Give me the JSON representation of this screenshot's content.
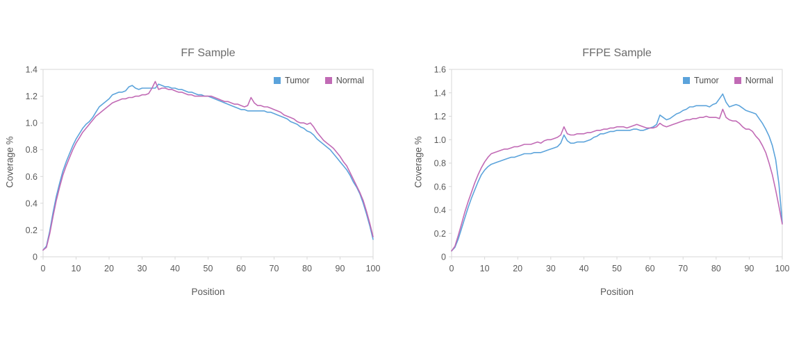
{
  "figure": {
    "background": "#ffffff",
    "text_color": "#595959",
    "axis_line_color": "#d7d7d7"
  },
  "chart_data": [
    {
      "type": "line",
      "title": "FF Sample",
      "xlabel": "Position",
      "ylabel": "Coverage %",
      "xlim": [
        0,
        100
      ],
      "ylim": [
        0,
        1.4
      ],
      "xticks": [
        0,
        10,
        20,
        30,
        40,
        50,
        60,
        70,
        80,
        90,
        100
      ],
      "yticks": [
        0,
        0.2,
        0.4,
        0.6,
        0.8,
        1.0,
        1.2,
        1.4
      ],
      "grid": false,
      "legend_position": "top-right-inside",
      "x": [
        0,
        1,
        2,
        3,
        4,
        5,
        6,
        7,
        8,
        9,
        10,
        11,
        12,
        13,
        14,
        15,
        16,
        17,
        18,
        19,
        20,
        21,
        22,
        23,
        24,
        25,
        26,
        27,
        28,
        29,
        30,
        31,
        32,
        33,
        34,
        35,
        36,
        37,
        38,
        39,
        40,
        41,
        42,
        43,
        44,
        45,
        46,
        47,
        48,
        49,
        50,
        51,
        52,
        53,
        54,
        55,
        56,
        57,
        58,
        59,
        60,
        61,
        62,
        63,
        64,
        65,
        66,
        67,
        68,
        69,
        70,
        71,
        72,
        73,
        74,
        75,
        76,
        77,
        78,
        79,
        80,
        81,
        82,
        83,
        84,
        85,
        86,
        87,
        88,
        89,
        90,
        91,
        92,
        93,
        94,
        95,
        96,
        97,
        98,
        99,
        100
      ],
      "series": [
        {
          "name": "Tumor",
          "color": "#5ba3db",
          "values": [
            0.05,
            0.08,
            0.19,
            0.33,
            0.45,
            0.55,
            0.64,
            0.71,
            0.77,
            0.83,
            0.88,
            0.92,
            0.96,
            0.99,
            1.01,
            1.04,
            1.08,
            1.12,
            1.14,
            1.16,
            1.18,
            1.21,
            1.22,
            1.23,
            1.23,
            1.24,
            1.27,
            1.28,
            1.26,
            1.25,
            1.26,
            1.26,
            1.26,
            1.26,
            1.26,
            1.29,
            1.28,
            1.27,
            1.27,
            1.26,
            1.26,
            1.25,
            1.25,
            1.24,
            1.23,
            1.23,
            1.22,
            1.21,
            1.21,
            1.2,
            1.2,
            1.19,
            1.18,
            1.17,
            1.16,
            1.15,
            1.14,
            1.13,
            1.12,
            1.11,
            1.1,
            1.1,
            1.09,
            1.09,
            1.09,
            1.09,
            1.09,
            1.09,
            1.08,
            1.08,
            1.07,
            1.06,
            1.05,
            1.04,
            1.03,
            1.01,
            1.0,
            0.99,
            0.97,
            0.96,
            0.94,
            0.93,
            0.91,
            0.88,
            0.86,
            0.84,
            0.82,
            0.8,
            0.77,
            0.74,
            0.71,
            0.68,
            0.65,
            0.61,
            0.56,
            0.52,
            0.47,
            0.4,
            0.32,
            0.23,
            0.13
          ]
        },
        {
          "name": "Normal",
          "color": "#c16ab5",
          "values": [
            0.05,
            0.07,
            0.17,
            0.3,
            0.42,
            0.52,
            0.61,
            0.68,
            0.74,
            0.8,
            0.85,
            0.89,
            0.93,
            0.96,
            0.99,
            1.02,
            1.05,
            1.07,
            1.09,
            1.11,
            1.13,
            1.15,
            1.16,
            1.17,
            1.18,
            1.18,
            1.19,
            1.19,
            1.2,
            1.2,
            1.21,
            1.21,
            1.22,
            1.26,
            1.31,
            1.25,
            1.26,
            1.26,
            1.25,
            1.25,
            1.24,
            1.23,
            1.23,
            1.22,
            1.21,
            1.21,
            1.2,
            1.2,
            1.2,
            1.2,
            1.2,
            1.2,
            1.19,
            1.18,
            1.17,
            1.16,
            1.16,
            1.15,
            1.14,
            1.14,
            1.13,
            1.12,
            1.13,
            1.19,
            1.15,
            1.13,
            1.13,
            1.12,
            1.12,
            1.11,
            1.1,
            1.09,
            1.08,
            1.06,
            1.05,
            1.04,
            1.03,
            1.01,
            1.0,
            1.0,
            0.99,
            1.0,
            0.97,
            0.93,
            0.9,
            0.87,
            0.85,
            0.83,
            0.81,
            0.78,
            0.75,
            0.71,
            0.68,
            0.63,
            0.58,
            0.53,
            0.48,
            0.42,
            0.34,
            0.25,
            0.15
          ]
        }
      ]
    },
    {
      "type": "line",
      "title": "FFPE Sample",
      "xlabel": "Position",
      "ylabel": "Coverage %",
      "xlim": [
        0,
        100
      ],
      "ylim": [
        0,
        1.6
      ],
      "xticks": [
        0,
        10,
        20,
        30,
        40,
        50,
        60,
        70,
        80,
        90,
        100
      ],
      "yticks": [
        0,
        0.2,
        0.4,
        0.6,
        0.8,
        1.0,
        1.2,
        1.4,
        1.6
      ],
      "grid": false,
      "legend_position": "top-right-inside",
      "x": [
        0,
        1,
        2,
        3,
        4,
        5,
        6,
        7,
        8,
        9,
        10,
        11,
        12,
        13,
        14,
        15,
        16,
        17,
        18,
        19,
        20,
        21,
        22,
        23,
        24,
        25,
        26,
        27,
        28,
        29,
        30,
        31,
        32,
        33,
        34,
        35,
        36,
        37,
        38,
        39,
        40,
        41,
        42,
        43,
        44,
        45,
        46,
        47,
        48,
        49,
        50,
        51,
        52,
        53,
        54,
        55,
        56,
        57,
        58,
        59,
        60,
        61,
        62,
        63,
        64,
        65,
        66,
        67,
        68,
        69,
        70,
        71,
        72,
        73,
        74,
        75,
        76,
        77,
        78,
        79,
        80,
        81,
        82,
        83,
        84,
        85,
        86,
        87,
        88,
        89,
        90,
        91,
        92,
        93,
        94,
        95,
        96,
        97,
        98,
        99,
        100
      ],
      "series": [
        {
          "name": "Tumor",
          "color": "#5ba3db",
          "values": [
            0.05,
            0.08,
            0.15,
            0.24,
            0.33,
            0.42,
            0.5,
            0.57,
            0.64,
            0.7,
            0.74,
            0.77,
            0.79,
            0.8,
            0.81,
            0.82,
            0.83,
            0.84,
            0.85,
            0.85,
            0.86,
            0.87,
            0.88,
            0.88,
            0.88,
            0.89,
            0.89,
            0.89,
            0.9,
            0.91,
            0.92,
            0.93,
            0.94,
            0.97,
            1.04,
            0.99,
            0.97,
            0.97,
            0.98,
            0.98,
            0.98,
            0.99,
            1.0,
            1.02,
            1.03,
            1.05,
            1.05,
            1.06,
            1.07,
            1.07,
            1.08,
            1.08,
            1.08,
            1.08,
            1.08,
            1.09,
            1.09,
            1.08,
            1.08,
            1.09,
            1.1,
            1.11,
            1.13,
            1.21,
            1.19,
            1.17,
            1.18,
            1.2,
            1.22,
            1.23,
            1.25,
            1.26,
            1.28,
            1.28,
            1.29,
            1.29,
            1.29,
            1.29,
            1.28,
            1.3,
            1.31,
            1.35,
            1.39,
            1.32,
            1.28,
            1.29,
            1.3,
            1.29,
            1.27,
            1.25,
            1.24,
            1.23,
            1.22,
            1.18,
            1.14,
            1.09,
            1.03,
            0.95,
            0.83,
            0.62,
            0.29
          ]
        },
        {
          "name": "Normal",
          "color": "#c16ab5",
          "values": [
            0.05,
            0.09,
            0.18,
            0.28,
            0.38,
            0.47,
            0.55,
            0.63,
            0.7,
            0.76,
            0.81,
            0.85,
            0.88,
            0.89,
            0.9,
            0.91,
            0.92,
            0.92,
            0.93,
            0.94,
            0.94,
            0.95,
            0.96,
            0.96,
            0.96,
            0.97,
            0.98,
            0.97,
            0.99,
            1.0,
            1.0,
            1.01,
            1.02,
            1.04,
            1.11,
            1.05,
            1.04,
            1.04,
            1.05,
            1.05,
            1.05,
            1.06,
            1.06,
            1.07,
            1.08,
            1.08,
            1.09,
            1.09,
            1.1,
            1.1,
            1.11,
            1.11,
            1.11,
            1.1,
            1.11,
            1.12,
            1.13,
            1.12,
            1.11,
            1.1,
            1.1,
            1.1,
            1.11,
            1.14,
            1.12,
            1.11,
            1.12,
            1.13,
            1.14,
            1.15,
            1.16,
            1.17,
            1.17,
            1.18,
            1.18,
            1.19,
            1.19,
            1.2,
            1.19,
            1.19,
            1.19,
            1.18,
            1.26,
            1.19,
            1.17,
            1.16,
            1.16,
            1.14,
            1.11,
            1.09,
            1.09,
            1.07,
            1.03,
            1.0,
            0.95,
            0.89,
            0.8,
            0.7,
            0.57,
            0.43,
            0.28
          ]
        }
      ]
    }
  ]
}
